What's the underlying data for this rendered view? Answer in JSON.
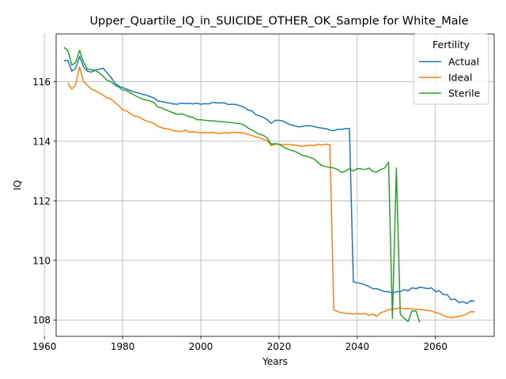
{
  "chart_data": {
    "type": "line",
    "title": "Upper_Quartile_IQ_in_SUICIDE_OTHER_OK_Sample for White_Male",
    "xlabel": "Years",
    "ylabel": "IQ",
    "xlim": [
      1963,
      2075
    ],
    "ylim": [
      107.45,
      117.6
    ],
    "x_ticks": [
      1960,
      1980,
      2000,
      2020,
      2040,
      2060
    ],
    "x_tick_labels": [
      "1960",
      "1980",
      "2000",
      "2020",
      "2040",
      "2060"
    ],
    "y_ticks": [
      108,
      110,
      112,
      114,
      116
    ],
    "y_tick_labels": [
      "108",
      "110",
      "112",
      "114",
      "116"
    ],
    "grid": true,
    "legend": {
      "title": "Fertility",
      "placement": "top-right"
    },
    "series": [
      {
        "name": "Actual",
        "color": "#1f77b4",
        "points": [
          [
            1965,
            116.7
          ],
          [
            1966,
            116.72
          ],
          [
            1967,
            116.35
          ],
          [
            1968,
            116.45
          ],
          [
            1969,
            116.85
          ],
          [
            1970,
            116.5
          ],
          [
            1971,
            116.35
          ],
          [
            1972,
            116.32
          ],
          [
            1973,
            116.38
          ],
          [
            1974,
            116.42
          ],
          [
            1975,
            116.45
          ],
          [
            1976,
            116.3
          ],
          [
            1977,
            116.15
          ],
          [
            1978,
            115.95
          ],
          [
            1979,
            115.85
          ],
          [
            1980,
            115.8
          ],
          [
            1981,
            115.75
          ],
          [
            1982,
            115.7
          ],
          [
            1983,
            115.65
          ],
          [
            1984,
            115.62
          ],
          [
            1985,
            115.58
          ],
          [
            1986,
            115.55
          ],
          [
            1987,
            115.5
          ],
          [
            1988,
            115.45
          ],
          [
            1989,
            115.35
          ],
          [
            1990,
            115.33
          ],
          [
            1991,
            115.3
          ],
          [
            1992,
            115.28
          ],
          [
            1993,
            115.25
          ],
          [
            1994,
            115.24
          ],
          [
            1995,
            115.28
          ],
          [
            1996,
            115.26
          ],
          [
            1997,
            115.27
          ],
          [
            1998,
            115.25
          ],
          [
            1999,
            115.28
          ],
          [
            2000,
            115.24
          ],
          [
            2001,
            115.26
          ],
          [
            2002,
            115.25
          ],
          [
            2003,
            115.3
          ],
          [
            2004,
            115.29
          ],
          [
            2005,
            115.28
          ],
          [
            2006,
            115.29
          ],
          [
            2007,
            115.23
          ],
          [
            2008,
            115.24
          ],
          [
            2009,
            115.23
          ],
          [
            2010,
            115.19
          ],
          [
            2011,
            115.15
          ],
          [
            2012,
            115.05
          ],
          [
            2013,
            115.02
          ],
          [
            2014,
            114.9
          ],
          [
            2015,
            114.85
          ],
          [
            2016,
            114.8
          ],
          [
            2017,
            114.72
          ],
          [
            2018,
            114.6
          ],
          [
            2019,
            114.7
          ],
          [
            2020,
            114.7
          ],
          [
            2021,
            114.68
          ],
          [
            2022,
            114.6
          ],
          [
            2023,
            114.55
          ],
          [
            2024,
            114.52
          ],
          [
            2025,
            114.48
          ],
          [
            2026,
            114.5
          ],
          [
            2027,
            114.52
          ],
          [
            2028,
            114.52
          ],
          [
            2029,
            114.49
          ],
          [
            2030,
            114.46
          ],
          [
            2031,
            114.44
          ],
          [
            2032,
            114.42
          ],
          [
            2033,
            114.38
          ],
          [
            2034,
            114.35
          ],
          [
            2035,
            114.4
          ],
          [
            2036,
            114.4
          ],
          [
            2037,
            114.42
          ],
          [
            2038,
            114.43
          ],
          [
            2039,
            109.28
          ],
          [
            2040,
            109.25
          ],
          [
            2041,
            109.22
          ],
          [
            2042,
            109.18
          ],
          [
            2043,
            109.12
          ],
          [
            2044,
            109.05
          ],
          [
            2045,
            109.05
          ],
          [
            2046,
            109.0
          ],
          [
            2047,
            108.95
          ],
          [
            2048,
            108.95
          ],
          [
            2049,
            108.9
          ],
          [
            2050,
            108.95
          ],
          [
            2051,
            108.95
          ],
          [
            2052,
            109.02
          ],
          [
            2053,
            108.98
          ],
          [
            2054,
            109.08
          ],
          [
            2055,
            109.05
          ],
          [
            2056,
            109.1
          ],
          [
            2057,
            109.08
          ],
          [
            2058,
            109.05
          ],
          [
            2059,
            109.08
          ],
          [
            2060,
            108.95
          ],
          [
            2061,
            108.98
          ],
          [
            2062,
            108.85
          ],
          [
            2063,
            108.85
          ],
          [
            2064,
            108.68
          ],
          [
            2065,
            108.7
          ],
          [
            2066,
            108.58
          ],
          [
            2067,
            108.62
          ],
          [
            2068,
            108.55
          ],
          [
            2069,
            108.65
          ],
          [
            2070,
            108.63
          ]
        ]
      },
      {
        "name": "Ideal",
        "color": "#ff7f0e",
        "points": [
          [
            1966,
            115.95
          ],
          [
            1967,
            115.75
          ],
          [
            1968,
            115.9
          ],
          [
            1969,
            116.5
          ],
          [
            1970,
            116.0
          ],
          [
            1971,
            115.88
          ],
          [
            1972,
            115.75
          ],
          [
            1973,
            115.7
          ],
          [
            1974,
            115.62
          ],
          [
            1975,
            115.55
          ],
          [
            1976,
            115.45
          ],
          [
            1977,
            115.42
          ],
          [
            1978,
            115.3
          ],
          [
            1979,
            115.2
          ],
          [
            1980,
            115.05
          ],
          [
            1981,
            115.02
          ],
          [
            1982,
            114.92
          ],
          [
            1983,
            114.85
          ],
          [
            1984,
            114.82
          ],
          [
            1985,
            114.75
          ],
          [
            1986,
            114.68
          ],
          [
            1987,
            114.65
          ],
          [
            1988,
            114.6
          ],
          [
            1989,
            114.5
          ],
          [
            1990,
            114.45
          ],
          [
            1991,
            114.42
          ],
          [
            1992,
            114.4
          ],
          [
            1993,
            114.35
          ],
          [
            1994,
            114.34
          ],
          [
            1995,
            114.32
          ],
          [
            1996,
            114.38
          ],
          [
            1997,
            114.3
          ],
          [
            1998,
            114.32
          ],
          [
            1999,
            114.3
          ],
          [
            2000,
            114.28
          ],
          [
            2001,
            114.29
          ],
          [
            2002,
            114.28
          ],
          [
            2003,
            114.3
          ],
          [
            2004,
            114.27
          ],
          [
            2005,
            114.25
          ],
          [
            2006,
            114.3
          ],
          [
            2007,
            114.26
          ],
          [
            2008,
            114.3
          ],
          [
            2009,
            114.29
          ],
          [
            2010,
            114.29
          ],
          [
            2011,
            114.27
          ],
          [
            2012,
            114.23
          ],
          [
            2013,
            114.2
          ],
          [
            2014,
            114.15
          ],
          [
            2015,
            114.12
          ],
          [
            2016,
            114.06
          ],
          [
            2017,
            114.02
          ],
          [
            2018,
            113.85
          ],
          [
            2019,
            113.9
          ],
          [
            2020,
            113.9
          ],
          [
            2021,
            113.88
          ],
          [
            2022,
            113.9
          ],
          [
            2023,
            113.88
          ],
          [
            2024,
            113.87
          ],
          [
            2025,
            113.85
          ],
          [
            2026,
            113.83
          ],
          [
            2027,
            113.85
          ],
          [
            2028,
            113.86
          ],
          [
            2029,
            113.85
          ],
          [
            2030,
            113.9
          ],
          [
            2031,
            113.87
          ],
          [
            2032,
            113.9
          ],
          [
            2033,
            113.88
          ],
          [
            2034,
            108.35
          ],
          [
            2035,
            108.28
          ],
          [
            2036,
            108.25
          ],
          [
            2037,
            108.22
          ],
          [
            2038,
            108.22
          ],
          [
            2039,
            108.2
          ],
          [
            2040,
            108.22
          ],
          [
            2041,
            108.2
          ],
          [
            2042,
            108.22
          ],
          [
            2043,
            108.15
          ],
          [
            2044,
            108.2
          ],
          [
            2045,
            108.12
          ],
          [
            2046,
            108.25
          ],
          [
            2047,
            108.28
          ],
          [
            2048,
            108.35
          ],
          [
            2049,
            108.35
          ],
          [
            2050,
            108.38
          ],
          [
            2051,
            108.4
          ],
          [
            2052,
            108.38
          ],
          [
            2053,
            108.38
          ],
          [
            2054,
            108.37
          ],
          [
            2055,
            108.36
          ],
          [
            2056,
            108.35
          ],
          [
            2057,
            108.34
          ],
          [
            2058,
            108.32
          ],
          [
            2059,
            108.3
          ],
          [
            2060,
            108.25
          ],
          [
            2061,
            108.22
          ],
          [
            2062,
            108.15
          ],
          [
            2063,
            108.1
          ],
          [
            2064,
            108.08
          ],
          [
            2065,
            108.1
          ],
          [
            2066,
            108.12
          ],
          [
            2067,
            108.15
          ],
          [
            2068,
            108.2
          ],
          [
            2069,
            108.28
          ],
          [
            2070,
            108.27
          ]
        ]
      },
      {
        "name": "Sterile",
        "color": "#2ca02c",
        "points": [
          [
            1965,
            117.15
          ],
          [
            1966,
            117.05
          ],
          [
            1967,
            116.55
          ],
          [
            1968,
            116.65
          ],
          [
            1969,
            117.05
          ],
          [
            1970,
            116.65
          ],
          [
            1971,
            116.42
          ],
          [
            1972,
            116.4
          ],
          [
            1973,
            116.38
          ],
          [
            1974,
            116.3
          ],
          [
            1975,
            116.18
          ],
          [
            1976,
            116.05
          ],
          [
            1977,
            116.0
          ],
          [
            1978,
            115.88
          ],
          [
            1979,
            115.82
          ],
          [
            1980,
            115.72
          ],
          [
            1981,
            115.7
          ],
          [
            1982,
            115.62
          ],
          [
            1983,
            115.55
          ],
          [
            1984,
            115.48
          ],
          [
            1985,
            115.42
          ],
          [
            1986,
            115.38
          ],
          [
            1987,
            115.35
          ],
          [
            1988,
            115.3
          ],
          [
            1989,
            115.15
          ],
          [
            1990,
            115.12
          ],
          [
            1991,
            115.05
          ],
          [
            1992,
            115.0
          ],
          [
            1993,
            114.95
          ],
          [
            1994,
            114.9
          ],
          [
            1995,
            114.92
          ],
          [
            1996,
            114.88
          ],
          [
            1997,
            114.82
          ],
          [
            1998,
            114.8
          ],
          [
            1999,
            114.72
          ],
          [
            2000,
            114.72
          ],
          [
            2001,
            114.7
          ],
          [
            2002,
            114.69
          ],
          [
            2003,
            114.68
          ],
          [
            2004,
            114.67
          ],
          [
            2005,
            114.66
          ],
          [
            2006,
            114.65
          ],
          [
            2007,
            114.63
          ],
          [
            2008,
            114.63
          ],
          [
            2009,
            114.6
          ],
          [
            2010,
            114.59
          ],
          [
            2011,
            114.55
          ],
          [
            2012,
            114.45
          ],
          [
            2013,
            114.38
          ],
          [
            2014,
            114.3
          ],
          [
            2015,
            114.23
          ],
          [
            2016,
            114.2
          ],
          [
            2017,
            114.1
          ],
          [
            2018,
            113.9
          ],
          [
            2019,
            113.92
          ],
          [
            2020,
            113.9
          ],
          [
            2021,
            113.82
          ],
          [
            2022,
            113.75
          ],
          [
            2023,
            113.7
          ],
          [
            2024,
            113.66
          ],
          [
            2025,
            113.6
          ],
          [
            2026,
            113.52
          ],
          [
            2027,
            113.5
          ],
          [
            2028,
            113.45
          ],
          [
            2029,
            113.4
          ],
          [
            2030,
            113.28
          ],
          [
            2031,
            113.18
          ],
          [
            2032,
            113.15
          ],
          [
            2033,
            113.12
          ],
          [
            2034,
            113.1
          ],
          [
            2035,
            113.05
          ],
          [
            2036,
            112.95
          ],
          [
            2037,
            113.0
          ],
          [
            2038,
            113.08
          ],
          [
            2039,
            113.0
          ],
          [
            2040,
            113.08
          ],
          [
            2041,
            113.07
          ],
          [
            2042,
            113.05
          ],
          [
            2043,
            113.1
          ],
          [
            2044,
            112.98
          ],
          [
            2045,
            112.97
          ],
          [
            2046,
            113.05
          ],
          [
            2047,
            113.1
          ],
          [
            2048,
            113.3
          ],
          [
            2049,
            108.05
          ],
          [
            2050,
            113.1
          ],
          [
            2051,
            108.2
          ],
          [
            2052,
            108.05
          ],
          [
            2053,
            107.95
          ],
          [
            2054,
            108.3
          ],
          [
            2055,
            108.3
          ],
          [
            2056,
            107.92
          ]
        ]
      }
    ]
  }
}
